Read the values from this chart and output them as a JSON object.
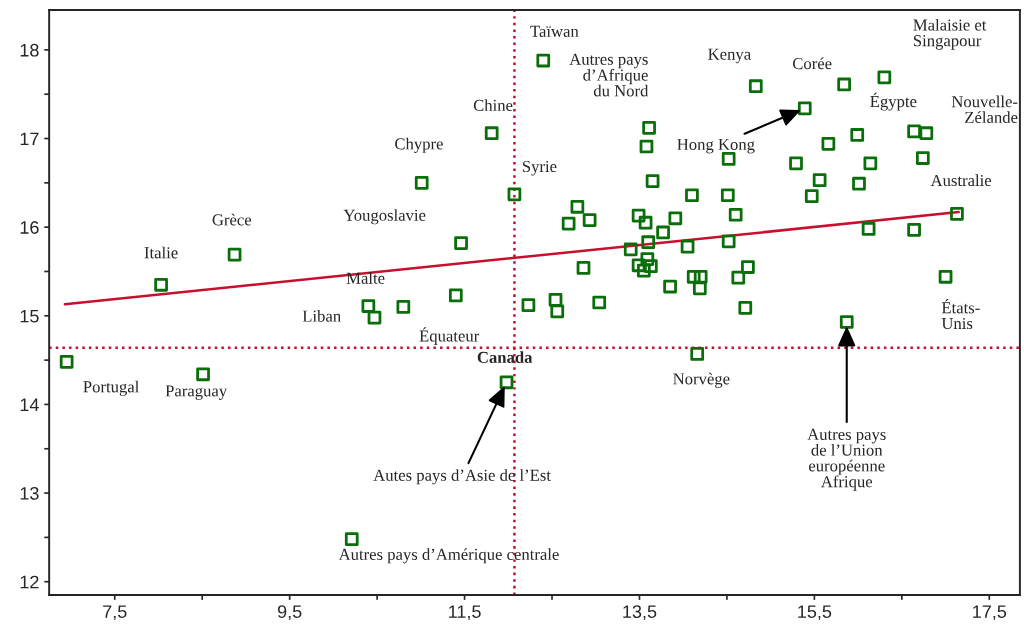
{
  "chart_data": {
    "type": "scatter",
    "series": [
      {
        "type": "scatter",
        "color": "#0a6e0a",
        "marker": "square",
        "x": [
          6.95,
          8.51,
          8.03,
          8.87,
          11.46,
          10.4,
          10.47,
          10.8,
          11.4,
          11.98,
          11.01,
          12.07,
          12.4,
          11.81,
          13.61,
          13.58,
          13.65,
          14.52,
          14.1,
          14.51,
          14.6,
          12.79,
          12.69,
          12.93,
          13.49,
          13.57,
          13.91,
          13.77,
          13.6,
          13.4,
          14.05,
          14.52,
          12.86,
          13.49,
          13.59,
          13.63,
          13.55,
          14.74,
          14.63,
          14.12,
          14.2,
          14.19,
          13.85,
          14.71,
          12.23,
          12.54,
          12.56,
          13.04,
          14.16,
          14.83,
          15.39,
          15.84,
          16.3,
          15.99,
          15.66,
          16.64,
          16.78,
          16.74,
          16.14,
          15.29,
          15.56,
          15.47,
          16.01,
          17.13,
          16.12,
          16.64,
          17.0,
          15.87,
          10.21
        ],
        "values": [
          14.48,
          14.34,
          15.35,
          15.69,
          15.82,
          15.11,
          14.98,
          15.1,
          15.23,
          14.25,
          16.5,
          16.37,
          17.88,
          17.06,
          17.12,
          16.91,
          16.52,
          16.77,
          16.36,
          16.36,
          16.14,
          16.23,
          16.04,
          16.08,
          16.13,
          16.05,
          16.1,
          15.94,
          15.83,
          15.75,
          15.78,
          15.84,
          15.54,
          15.57,
          15.64,
          15.56,
          15.51,
          15.55,
          15.43,
          15.44,
          15.44,
          15.31,
          15.33,
          15.09,
          15.12,
          15.18,
          15.05,
          15.15,
          14.57,
          17.59,
          17.34,
          17.61,
          17.69,
          17.04,
          16.94,
          17.08,
          17.06,
          16.78,
          16.72,
          16.72,
          16.53,
          16.35,
          16.49,
          16.15,
          15.98,
          15.97,
          15.44,
          14.93,
          12.48
        ]
      },
      {
        "type": "line",
        "color": "#c8102e",
        "marker": "none",
        "line_style": "solid",
        "x": [
          6.93,
          17.15
        ],
        "values": [
          15.13,
          16.17
        ]
      }
    ],
    "xlim": [
      6.75,
      17.85
    ],
    "xticks": [
      {
        "value": 7.5,
        "label": "7,5"
      },
      {
        "value": 8.5,
        "label": null
      },
      {
        "value": 9.5,
        "label": "9,5"
      },
      {
        "value": 10.5,
        "label": null
      },
      {
        "value": 11.5,
        "label": "11,5"
      },
      {
        "value": 12.5,
        "label": null
      },
      {
        "value": 13.5,
        "label": "13,5"
      },
      {
        "value": 14.5,
        "label": null
      },
      {
        "value": 15.5,
        "label": "15,5"
      },
      {
        "value": 16.5,
        "label": null
      },
      {
        "value": 17.5,
        "label": "17,5"
      }
    ],
    "ylim": [
      11.85,
      18.45
    ],
    "yticks": [
      12,
      {
        "value": 12.5,
        "label": null
      },
      13,
      {
        "value": 13.5,
        "label": null
      },
      14,
      {
        "value": 14.5,
        "label": null
      },
      15,
      {
        "value": 15.5,
        "label": null
      },
      16,
      {
        "value": 16.5,
        "label": null
      },
      17,
      {
        "value": 17.5,
        "label": null
      },
      18
    ],
    "ref_lines": [
      {
        "axis": "x",
        "value": 12.07,
        "color": "#c8102e",
        "line_style": "dotted"
      },
      {
        "axis": "y",
        "value": 14.64,
        "color": "#c8102e",
        "line_style": "dotted"
      }
    ],
    "grid": false,
    "legend": false,
    "annotations": [
      {
        "text": "Portugal",
        "x": 6.95,
        "y": 14.48
      },
      {
        "text": "Paraguay",
        "x": 8.51,
        "y": 14.34
      },
      {
        "text": "Italie",
        "x": 8.03,
        "y": 15.35
      },
      {
        "text": "Grèce",
        "x": 8.87,
        "y": 15.69
      },
      {
        "text": "Yougoslavie",
        "x": 11.46,
        "y": 15.82
      },
      {
        "text": "Malte",
        "x": 10.4,
        "y": 15.11
      },
      {
        "text": "Liban",
        "x": 10.47,
        "y": 14.98
      },
      {
        "text": "Équateur",
        "x": 10.8,
        "y": 15.1
      },
      {
        "text": "Chypre",
        "x": 11.01,
        "y": 16.5
      },
      {
        "text": "Chine",
        "x": 11.81,
        "y": 17.06
      },
      {
        "text": "Syrie",
        "x": 12.07,
        "y": 16.37
      },
      {
        "text": "Taïwan",
        "x": 12.4,
        "y": 17.88
      },
      {
        "text": "Autres pays\nd’Afrique\ndu Nord",
        "x": 13.61,
        "y": 17.12
      },
      {
        "text": "Kenya",
        "x": 14.83,
        "y": 17.59
      },
      {
        "text": "Corée",
        "x": 15.84,
        "y": 17.61
      },
      {
        "text": "Malaisie et\nSingapour",
        "x": 16.3,
        "y": 17.69
      },
      {
        "text": "Égypte",
        "x": 15.99,
        "y": 17.04
      },
      {
        "text": "Nouvelle-\nZélande",
        "x": 16.78,
        "y": 17.06
      },
      {
        "text": "Australie",
        "x": 17.13,
        "y": 16.15
      },
      {
        "text": "États-\nUnis",
        "x": 17.0,
        "y": 15.44
      },
      {
        "text": "Norvège",
        "x": 14.16,
        "y": 14.57
      },
      {
        "text": "Hong Kong",
        "x": 15.39,
        "y": 17.34
      },
      {
        "text": "Autes pays d’Asie de l’Est",
        "x": 11.98,
        "y": 14.25
      },
      {
        "text": "Autres pays\nde l’Union\neuropéenne\nAfrique",
        "x": 15.87,
        "y": 14.93
      },
      {
        "text": "Autres pays d’Amérique centrale",
        "x": 10.21,
        "y": 12.48
      },
      {
        "text": "Canada",
        "x": 12.07,
        "y": 14.64
      }
    ]
  }
}
